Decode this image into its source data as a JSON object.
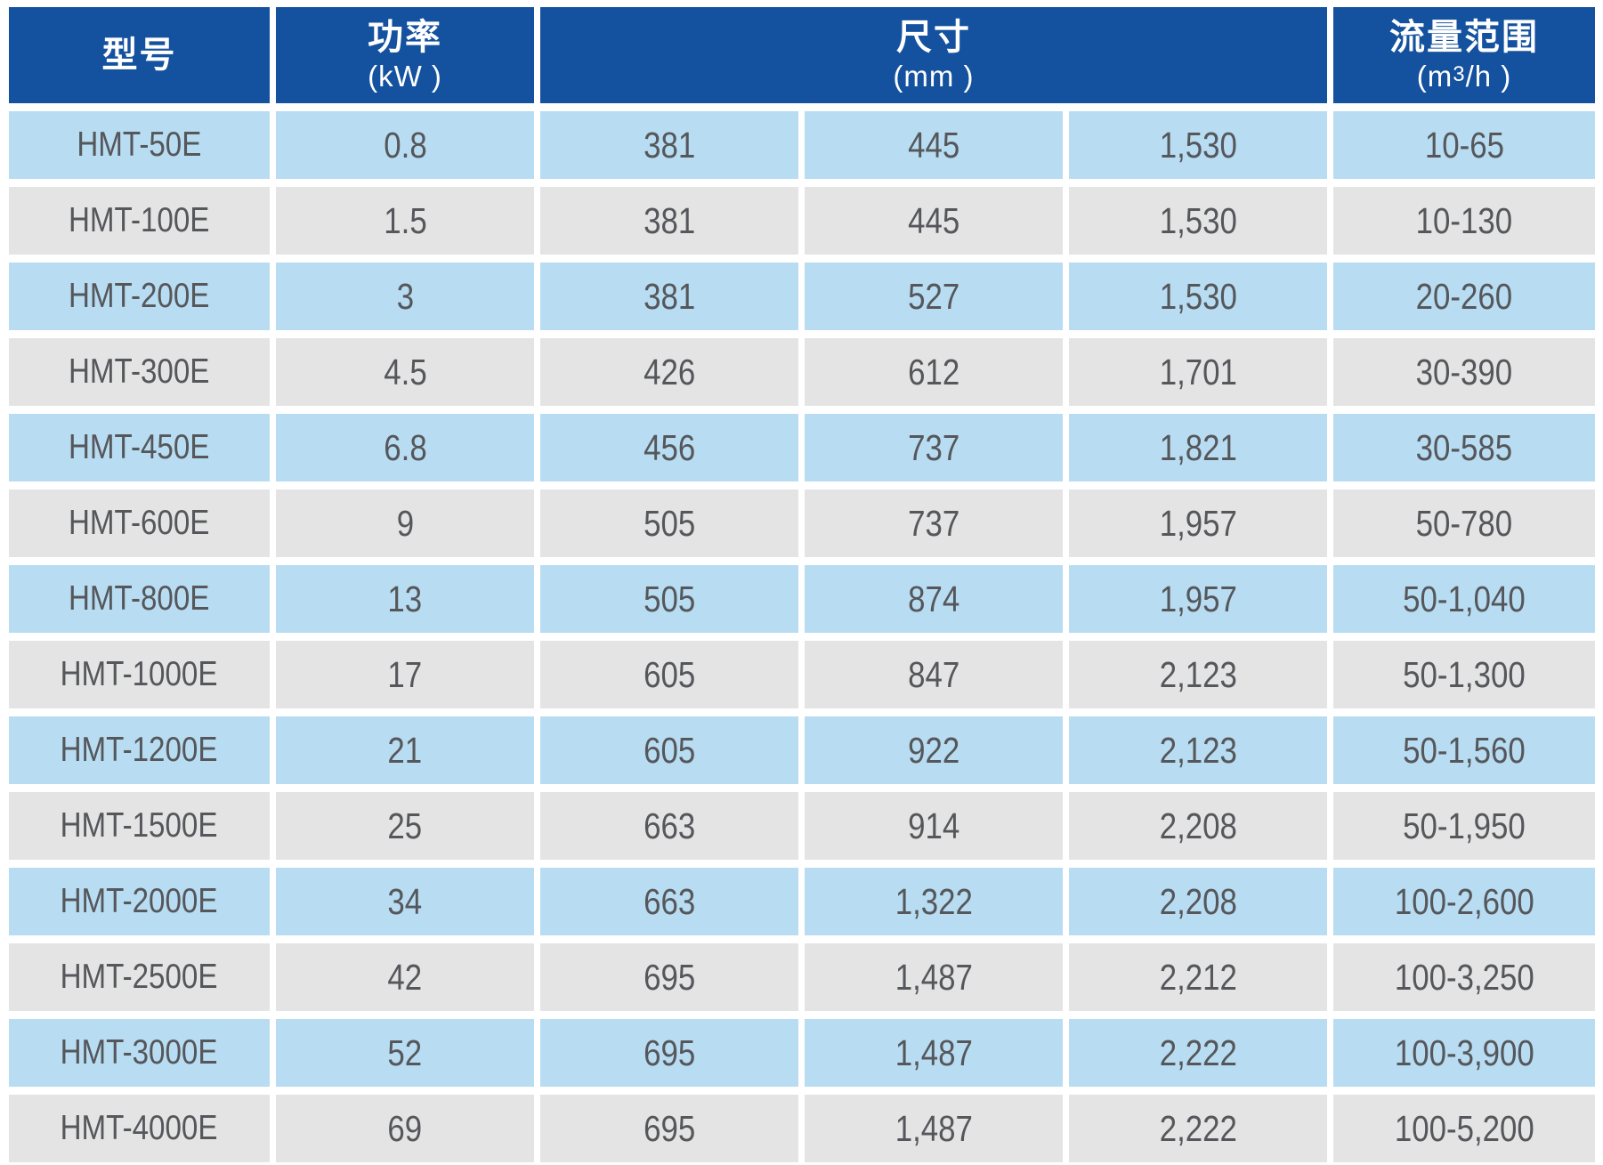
{
  "table": {
    "header": {
      "model": {
        "title": "型号"
      },
      "power": {
        "title": "功率",
        "unit": "(kW )"
      },
      "dimensions": {
        "title": "尺寸",
        "unit": "(mm )",
        "colspan": 3
      },
      "flow": {
        "title": "流量范围",
        "unit_pre": "(m",
        "unit_sup": "3",
        "unit_post": "/h )"
      }
    },
    "rows": [
      {
        "model": "HMT-50E",
        "power": "0.8",
        "dim1": "381",
        "dim2": "445",
        "dim3": "1,530",
        "flow": "10-65"
      },
      {
        "model": "HMT-100E",
        "power": "1.5",
        "dim1": "381",
        "dim2": "445",
        "dim3": "1,530",
        "flow": "10-130"
      },
      {
        "model": "HMT-200E",
        "power": "3",
        "dim1": "381",
        "dim2": "527",
        "dim3": "1,530",
        "flow": "20-260"
      },
      {
        "model": "HMT-300E",
        "power": "4.5",
        "dim1": "426",
        "dim2": "612",
        "dim3": "1,701",
        "flow": "30-390"
      },
      {
        "model": "HMT-450E",
        "power": "6.8",
        "dim1": "456",
        "dim2": "737",
        "dim3": "1,821",
        "flow": "30-585"
      },
      {
        "model": "HMT-600E",
        "power": "9",
        "dim1": "505",
        "dim2": "737",
        "dim3": "1,957",
        "flow": "50-780"
      },
      {
        "model": "HMT-800E",
        "power": "13",
        "dim1": "505",
        "dim2": "874",
        "dim3": "1,957",
        "flow": "50-1,040"
      },
      {
        "model": "HMT-1000E",
        "power": "17",
        "dim1": "605",
        "dim2": "847",
        "dim3": "2,123",
        "flow": "50-1,300"
      },
      {
        "model": "HMT-1200E",
        "power": "21",
        "dim1": "605",
        "dim2": "922",
        "dim3": "2,123",
        "flow": "50-1,560"
      },
      {
        "model": "HMT-1500E",
        "power": "25",
        "dim1": "663",
        "dim2": "914",
        "dim3": "2,208",
        "flow": "50-1,950"
      },
      {
        "model": "HMT-2000E",
        "power": "34",
        "dim1": "663",
        "dim2": "1,322",
        "dim3": "2,208",
        "flow": "100-2,600"
      },
      {
        "model": "HMT-2500E",
        "power": "42",
        "dim1": "695",
        "dim2": "1,487",
        "dim3": "2,212",
        "flow": "100-3,250"
      },
      {
        "model": "HMT-3000E",
        "power": "52",
        "dim1": "695",
        "dim2": "1,487",
        "dim3": "2,222",
        "flow": "100-3,900"
      },
      {
        "model": "HMT-4000E",
        "power": "69",
        "dim1": "695",
        "dim2": "1,487",
        "dim3": "2,222",
        "flow": "100-5,200"
      }
    ]
  },
  "colors": {
    "header_bg": "#14519f",
    "header_text": "#ffffff",
    "row_blue": "#b8dcf1",
    "row_gray": "#e4e4e4",
    "cell_text": "#55575b",
    "background": "#ffffff"
  }
}
